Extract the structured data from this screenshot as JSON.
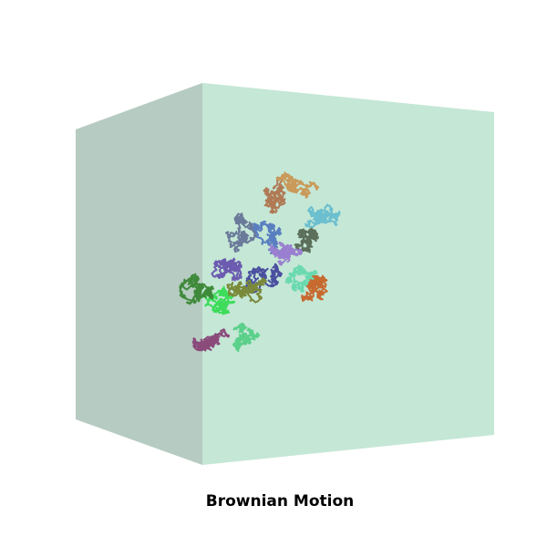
{
  "caption": "Brownian Motion"
}
